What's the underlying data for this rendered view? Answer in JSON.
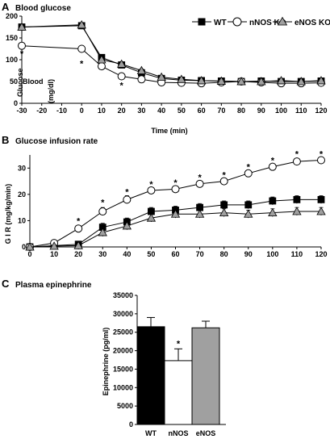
{
  "colors": {
    "wt": "#000000",
    "nnos": "#ffffff",
    "enos": "#a0a0a0",
    "line": "#000000"
  },
  "chart_data": [
    {
      "panel": "A",
      "type": "line",
      "title": "Blood glucose",
      "xlabel": "Time (min)",
      "ylabel_lines": [
        "Blood",
        "Glucose",
        "(mg/dl)"
      ],
      "xticks": [
        -30,
        -20,
        -10,
        0,
        10,
        20,
        30,
        40,
        50,
        60,
        70,
        80,
        90,
        100,
        110,
        120
      ],
      "yticks": [
        0,
        50,
        100,
        150,
        200
      ],
      "xlim": [
        -30,
        120
      ],
      "ylim": [
        0,
        200
      ],
      "legend": [
        "WT",
        "nNOS KO",
        "eNOS KO"
      ],
      "legend_position": "top-right",
      "x": [
        -30,
        0,
        10,
        20,
        30,
        40,
        50,
        60,
        70,
        80,
        90,
        100,
        110,
        120
      ],
      "series": [
        {
          "name": "WT",
          "marker": "square",
          "values": [
            175,
            178,
            105,
            88,
            70,
            57,
            53,
            52,
            51,
            50,
            51,
            50,
            50,
            51
          ],
          "err": [
            4,
            5,
            6,
            5,
            4,
            3,
            3,
            3,
            3,
            3,
            3,
            3,
            3,
            3
          ]
        },
        {
          "name": "nNOS KO",
          "marker": "circle",
          "values": [
            132,
            125,
            85,
            62,
            55,
            48,
            47,
            46,
            48,
            50,
            48,
            46,
            46,
            47
          ],
          "err": [
            4,
            7,
            6,
            5,
            4,
            3,
            3,
            3,
            3,
            3,
            3,
            3,
            3,
            3
          ]
        },
        {
          "name": "eNOS KO",
          "marker": "triangle",
          "values": [
            175,
            180,
            100,
            90,
            75,
            60,
            55,
            52,
            51,
            50,
            50,
            52,
            50,
            52
          ],
          "err": [
            4,
            5,
            6,
            5,
            4,
            3,
            3,
            3,
            3,
            3,
            3,
            3,
            3,
            3
          ]
        }
      ],
      "significance": [
        {
          "x": -30,
          "y": 115,
          "label": "*"
        },
        {
          "x": 0,
          "y": 92,
          "label": "*"
        },
        {
          "x": 20,
          "y": 42,
          "label": "*"
        }
      ]
    },
    {
      "panel": "B",
      "type": "line",
      "title": "Glucose infusion rate",
      "xlabel": "",
      "ylabel": "G I R (mg/kg/min)",
      "xticks": [
        0,
        10,
        20,
        30,
        40,
        50,
        60,
        70,
        80,
        90,
        100,
        110,
        120
      ],
      "yticks": [
        0,
        10,
        20,
        30
      ],
      "xlim": [
        0,
        120
      ],
      "ylim": [
        0,
        35
      ],
      "x": [
        0,
        10,
        20,
        30,
        40,
        50,
        60,
        70,
        80,
        90,
        100,
        110,
        120
      ],
      "series": [
        {
          "name": "WT",
          "marker": "square",
          "values": [
            0,
            0.5,
            1,
            7.5,
            9.5,
            13.5,
            14,
            15,
            16,
            16,
            17.5,
            18,
            18
          ],
          "err": [
            0.2,
            0.5,
            1,
            1.5,
            1.5,
            1.5,
            1.5,
            1.5,
            1.5,
            1.5,
            1.5,
            1.5,
            1.5
          ]
        },
        {
          "name": "nNOS KO",
          "marker": "circle",
          "values": [
            0,
            1.5,
            7,
            13.5,
            18,
            21.5,
            22,
            24,
            25,
            28,
            30.5,
            32.5,
            33
          ],
          "err": [
            0.2,
            0.5,
            1,
            1.5,
            1.5,
            1,
            1,
            1,
            1,
            1,
            1,
            1,
            1
          ]
        },
        {
          "name": "eNOS KO",
          "marker": "triangle",
          "values": [
            0,
            0.3,
            0.5,
            5.5,
            8,
            11,
            12.5,
            12.5,
            13,
            12.5,
            13,
            13.5,
            13.5
          ],
          "err": [
            0.2,
            0.5,
            1,
            1.5,
            1.5,
            1.5,
            1.5,
            1.5,
            1.5,
            1.5,
            1.5,
            1.5,
            1.5
          ]
        }
      ],
      "significance": [
        {
          "x": 20,
          "y": 10,
          "label": "*"
        },
        {
          "x": 30,
          "y": 17,
          "label": "*"
        },
        {
          "x": 40,
          "y": 21,
          "label": "*"
        },
        {
          "x": 50,
          "y": 24,
          "label": "*"
        },
        {
          "x": 60,
          "y": 24.5,
          "label": "*"
        },
        {
          "x": 70,
          "y": 26.5,
          "label": "*"
        },
        {
          "x": 80,
          "y": 27.5,
          "label": "*"
        },
        {
          "x": 90,
          "y": 30.5,
          "label": "*"
        },
        {
          "x": 100,
          "y": 33,
          "label": "*"
        },
        {
          "x": 110,
          "y": 35.5,
          "label": "*"
        },
        {
          "x": 120,
          "y": 35.5,
          "label": "*"
        }
      ]
    },
    {
      "panel": "C",
      "type": "bar",
      "title": "Plasma epinephrine",
      "xlabel": "",
      "ylabel": "Epinephrine (pg/ml)",
      "categories": [
        "WT",
        "nNOS",
        "eNOS"
      ],
      "values": [
        26500,
        17300,
        26200
      ],
      "err": [
        2500,
        3200,
        1800
      ],
      "bar_colors": [
        "#000000",
        "#ffffff",
        "#a0a0a0"
      ],
      "yticks": [
        0,
        5000,
        10000,
        15000,
        20000,
        25000,
        30000,
        35000
      ],
      "ylim": [
        0,
        35000
      ],
      "significance": [
        {
          "category": "nNOS",
          "label": "*"
        }
      ]
    }
  ]
}
